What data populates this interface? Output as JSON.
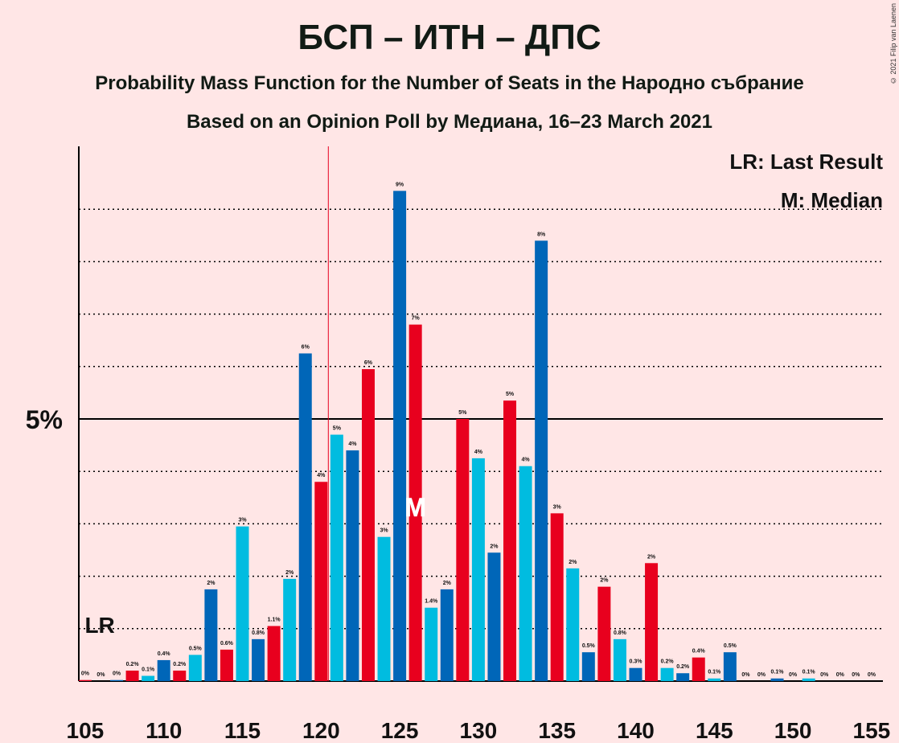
{
  "header": {
    "title": "БСП – ИТН – ДПС",
    "subtitle": "Probability Mass Function for the Number of Seats in the Народно събрание",
    "subtitle2": "Based on an Opinion Poll by Медиана, 16–23 March 2021",
    "copyright": "© 2021 Filip van Laenen"
  },
  "legend": {
    "lr": "LR: Last Result",
    "m": "M: Median"
  },
  "colors": {
    "background": "#FFE6E6",
    "red": "#E8001E",
    "blue": "#0066B8",
    "cyan": "#00BCE0",
    "axis": "#000000"
  },
  "chart_data": {
    "type": "bar",
    "x": [
      105,
      106,
      107,
      108,
      109,
      110,
      111,
      112,
      113,
      114,
      115,
      116,
      117,
      118,
      119,
      120,
      121,
      122,
      123,
      124,
      125,
      126,
      127,
      128,
      129,
      130,
      131,
      132,
      133,
      134,
      135,
      136,
      137,
      138,
      139,
      140,
      141,
      142,
      143,
      144,
      145,
      146,
      147,
      148,
      149,
      150,
      151,
      152,
      153,
      154,
      155
    ],
    "values": [
      0.02,
      0,
      0.02,
      0.2,
      0.1,
      0.4,
      0.2,
      0.5,
      1.75,
      0.6,
      2.95,
      0.8,
      1.05,
      1.95,
      6.25,
      3.8,
      4.7,
      4.4,
      5.95,
      2.75,
      9.35,
      6.8,
      1.4,
      1.75,
      5.0,
      4.25,
      2.45,
      5.35,
      4.1,
      8.4,
      3.2,
      2.15,
      0.55,
      1.8,
      0.8,
      0.25,
      2.25,
      0.25,
      0.15,
      0.45,
      0.05,
      0.55,
      0,
      0,
      0.05,
      0,
      0.05,
      0,
      0,
      0,
      0
    ],
    "labels": [
      "0%",
      "0%",
      "0%",
      "0.2%",
      "0.1%",
      "0.4%",
      "0.2%",
      "0.5%",
      "2%",
      "0.6%",
      "3%",
      "0.8%",
      "1.1%",
      "2%",
      "6%",
      "4%",
      "5%",
      "4%",
      "6%",
      "3%",
      "9%",
      "7%",
      "1.4%",
      "2%",
      "5%",
      "4%",
      "2%",
      "5%",
      "4%",
      "8%",
      "3%",
      "2%",
      "0.5%",
      "2%",
      "0.8%",
      "0.3%",
      "2%",
      "0.2%",
      "0.2%",
      "0.4%",
      "0.1%",
      "0.5%",
      "0%",
      "0%",
      "0.1%",
      "0%",
      "0.1%",
      "0%",
      "0%",
      "0%",
      "0%"
    ],
    "xticks": [
      "105",
      "110",
      "115",
      "120",
      "125",
      "130",
      "135",
      "140",
      "145",
      "150",
      "155"
    ],
    "yticks": [
      "5%"
    ],
    "ylim": [
      0,
      10
    ],
    "last_result": 120,
    "last_result_label": "LR",
    "median": 126,
    "median_label": "M",
    "grid": true
  }
}
